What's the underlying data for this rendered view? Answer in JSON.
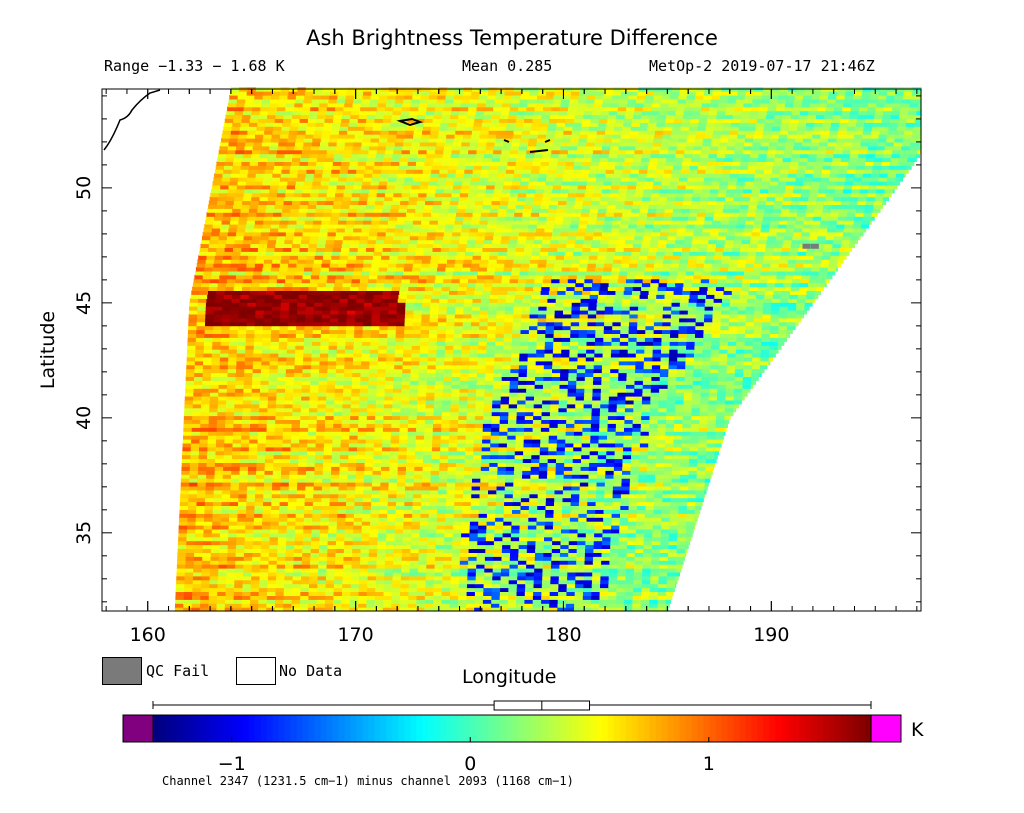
{
  "header": {
    "title": "Ash Brightness Temperature Difference",
    "range": "Range −1.33 − 1.68 K",
    "mean": "Mean 0.285",
    "satellite": "MetOp-2 2019-07-17 21:46Z"
  },
  "legend": {
    "qc_fail": "QC Fail",
    "no_data": "No Data",
    "qc_fail_color": "#7a7a7a",
    "no_data_color": "#ffffff"
  },
  "colorbar": {
    "unit": "K",
    "caption": "Channel 2347 (1231.5 cm−1) minus channel 2093 (1168 cm−1)",
    "range": [
      -1.33,
      1.68
    ],
    "ticks": [
      "−1",
      "0",
      "1"
    ],
    "tick_values": [
      -1,
      0,
      1
    ],
    "under_color": "#800080",
    "over_color": "#ff00ff",
    "colormap": "jet",
    "boxplot": {
      "min": -1.33,
      "q1": 0.1,
      "median": 0.3,
      "q3": 0.5,
      "max": 1.68
    }
  },
  "chart_data": {
    "type": "heatmap",
    "title": "Ash Brightness Temperature Difference",
    "xlabel": "Longitude",
    "ylabel": "Latitude",
    "xlim": [
      157.8,
      197.2
    ],
    "ylim": [
      31.6,
      54.3
    ],
    "x_ticks": [
      160,
      170,
      180,
      190
    ],
    "y_ticks": [
      35,
      40,
      45,
      50
    ],
    "x_tick_labels": [
      "160",
      "170",
      "180",
      "190"
    ],
    "y_tick_labels": [
      "35",
      "40",
      "45",
      "50"
    ],
    "swath_edges": {
      "west": [
        [
          164.0,
          54.3
        ],
        [
          162.0,
          45.0
        ],
        [
          161.3,
          31.6
        ]
      ],
      "east": [
        [
          197.2,
          51.5
        ],
        [
          188.0,
          40.0
        ],
        [
          185.0,
          31.6
        ]
      ]
    },
    "value_range": [
      -1.33,
      1.68
    ],
    "mean": 0.285,
    "features": [
      {
        "name": "warm band",
        "lon": [
          162.5,
          172.0
        ],
        "lat": [
          44.0,
          45.5
        ],
        "value": 1.6
      },
      {
        "name": "cool streak",
        "lon": [
          175.0,
          188.0
        ],
        "lat": [
          31.6,
          46.0
        ],
        "value": -0.6
      }
    ],
    "grid": false
  }
}
